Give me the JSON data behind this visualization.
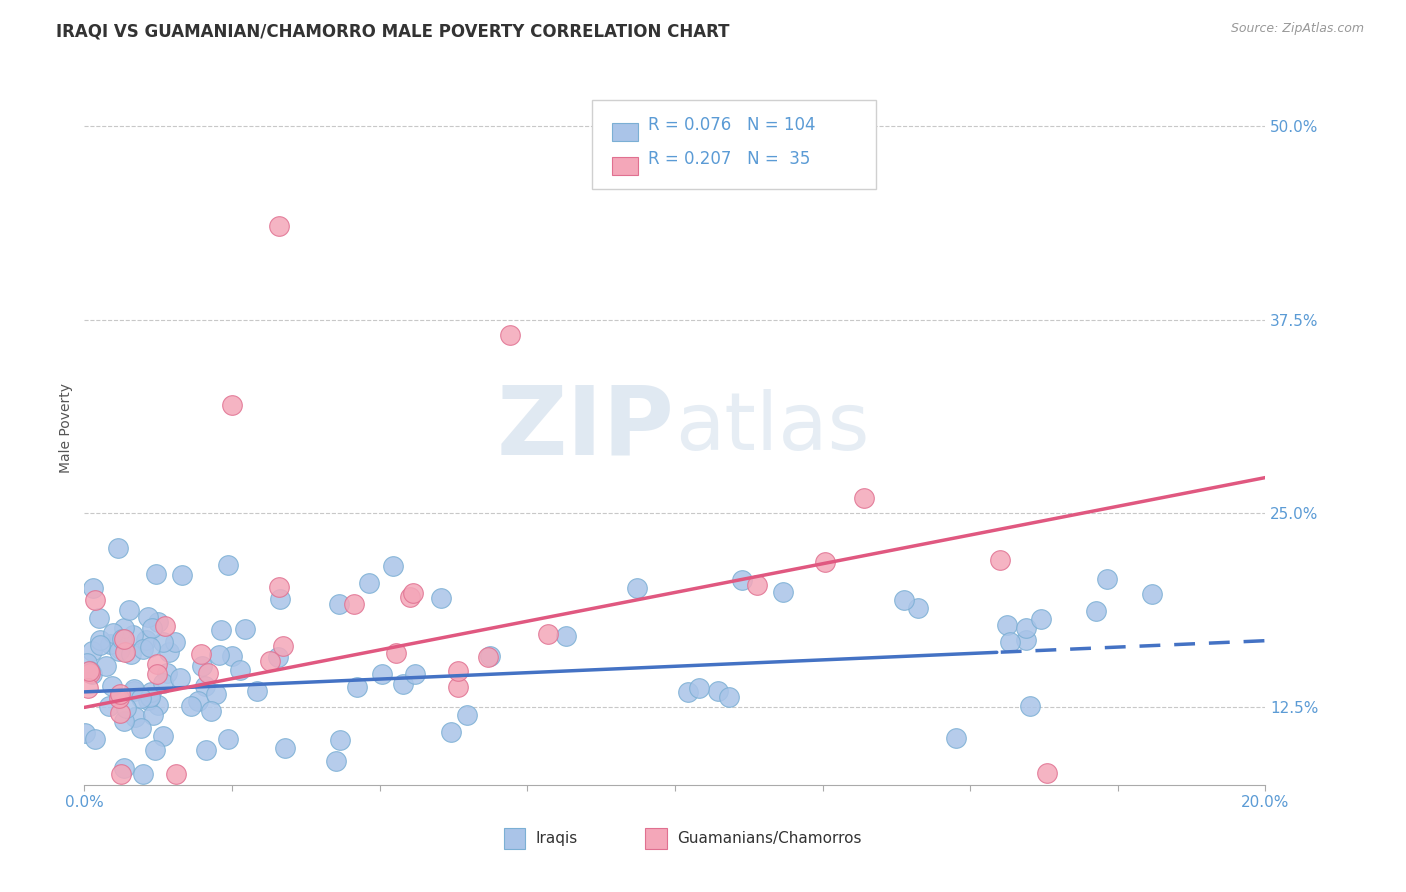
{
  "title": "IRAQI VS GUAMANIAN/CHAMORRO MALE POVERTY CORRELATION CHART",
  "source": "Source: ZipAtlas.com",
  "ylabel": "Male Poverty",
  "xlim": [
    0.0,
    0.2
  ],
  "ylim": [
    0.075,
    0.535
  ],
  "yticks": [
    0.125,
    0.25,
    0.375,
    0.5
  ],
  "yticklabels": [
    "12.5%",
    "25.0%",
    "37.5%",
    "50.0%"
  ],
  "xtick_left_label": "0.0%",
  "xtick_right_label": "20.0%",
  "grid_color": "#c8c8c8",
  "background_color": "#ffffff",
  "iraqi_color": "#aac4e8",
  "iraqi_edge_color": "#7bafd4",
  "guamanian_color": "#f4a7b9",
  "guamanian_edge_color": "#e07090",
  "iraqi_line_color": "#4472c4",
  "guamanian_line_color": "#e05880",
  "iraqi_R": 0.076,
  "iraqi_N": 104,
  "guamanian_R": 0.207,
  "guamanian_N": 35,
  "watermark": "ZIPatlas",
  "legend_R_color": "#5b9bd5",
  "tick_color": "#5b9bd5",
  "title_color": "#333333",
  "ylabel_color": "#555555",
  "source_color": "#999999",
  "title_fontsize": 12,
  "label_fontsize": 10,
  "tick_fontsize": 11,
  "legend_fontsize": 12
}
